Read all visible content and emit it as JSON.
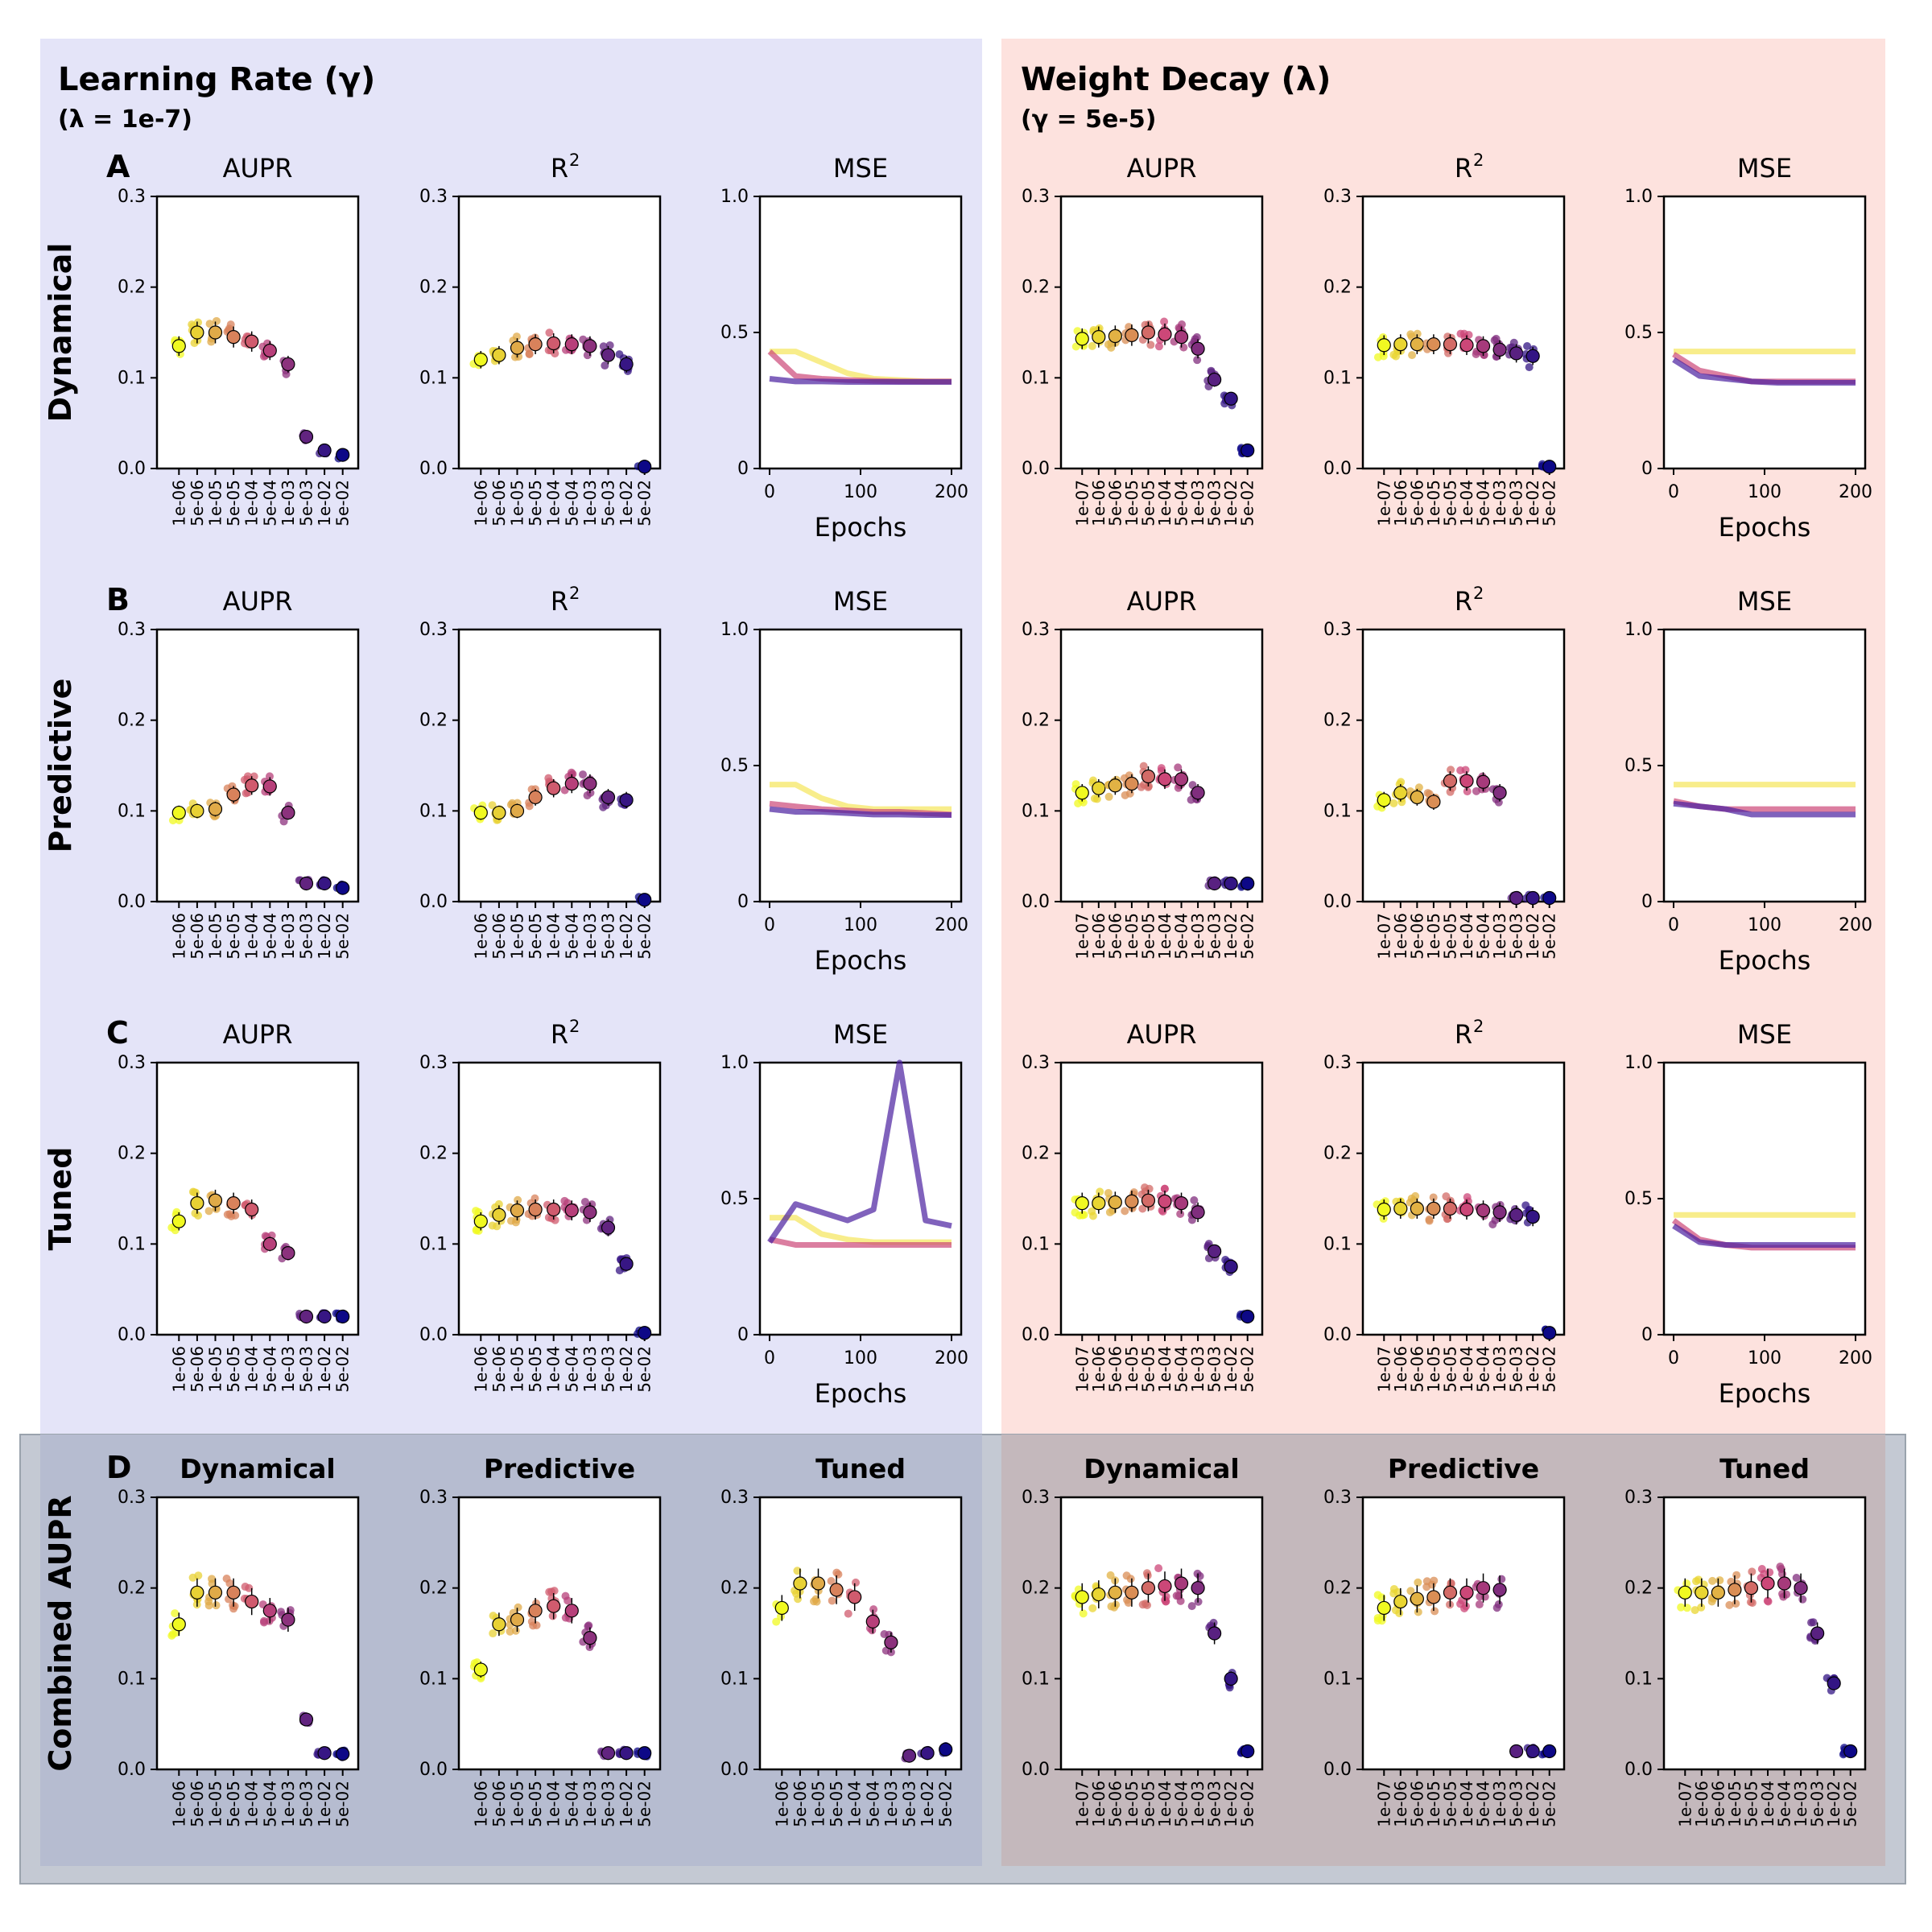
{
  "colors": {
    "bg_learning_rate": "#e4e4f8",
    "bg_weight_decay": "#fde2de",
    "bg_combined": "#c4c9d3",
    "bg_combined_lr": "#b6bcd0",
    "bg_combined_wd": "#c4b8bc",
    "plasma_low": "#0d0887",
    "plasma_mid": "#cc4778",
    "plasma_high": "#f0f921"
  },
  "sections": {
    "lr_title": "Learning Rate (γ)",
    "lr_subtitle": "(λ = 1e-7)",
    "wd_title": "Weight Decay (λ)",
    "wd_subtitle": "(γ = 5e-5)"
  },
  "rows": [
    {
      "letter": "A",
      "label": "Dynamical"
    },
    {
      "letter": "B",
      "label": "Predictive"
    },
    {
      "letter": "C",
      "label": "Tuned"
    },
    {
      "letter": "D",
      "label": "Combined AUPR"
    }
  ],
  "titles": {
    "aupr": "AUPR",
    "r2": "R",
    "r2_sup": "2",
    "mse": "MSE",
    "dynamical": "Dynamical",
    "predictive": "Predictive",
    "tuned": "Tuned"
  },
  "axis": {
    "epochs_label": "Epochs",
    "lr_ticks": [
      "1e-06",
      "5e-06",
      "1e-05",
      "5e-05",
      "1e-04",
      "5e-04",
      "1e-03",
      "5e-03",
      "1e-02",
      "5e-02"
    ],
    "wd_ticks": [
      "1e-07",
      "1e-06",
      "5e-06",
      "1e-05",
      "5e-05",
      "1e-04",
      "5e-04",
      "1e-03",
      "5e-03",
      "1e-02",
      "5e-02"
    ],
    "metric_yticks": [
      "0.0",
      "0.1",
      "0.2",
      "0.3"
    ],
    "mse_yticks": [
      "0",
      "0.5",
      "1.0"
    ],
    "epoch_ticks": [
      "0",
      "100",
      "200"
    ]
  },
  "chart_data": [
    {
      "id": "A-lr-aupr",
      "type": "scatter",
      "title": "AUPR",
      "x": [
        "1e-06",
        "5e-06",
        "1e-05",
        "5e-05",
        "1e-04",
        "5e-04",
        "1e-03",
        "5e-03",
        "1e-02",
        "5e-02"
      ],
      "means": [
        0.135,
        0.15,
        0.15,
        0.145,
        0.14,
        0.13,
        0.115,
        0.035,
        0.02,
        0.015
      ],
      "ylim": [
        0,
        0.3
      ]
    },
    {
      "id": "A-lr-r2",
      "type": "scatter",
      "title": "R2",
      "x": [
        "1e-06",
        "5e-06",
        "1e-05",
        "5e-05",
        "1e-04",
        "5e-04",
        "1e-03",
        "5e-03",
        "1e-02",
        "5e-02"
      ],
      "means": [
        0.12,
        0.125,
        0.133,
        0.137,
        0.138,
        0.137,
        0.135,
        0.125,
        0.115,
        0.002
      ],
      "ylim": [
        0,
        0.3
      ]
    },
    {
      "id": "A-lr-mse",
      "type": "line",
      "title": "MSE",
      "xlabel": "Epochs",
      "curves": [
        [
          0.43,
          0.43,
          0.39,
          0.35,
          0.33,
          0.325,
          0.32,
          0.32
        ],
        [
          0.43,
          0.34,
          0.33,
          0.325,
          0.322,
          0.32,
          0.32,
          0.32
        ],
        [
          0.33,
          0.32,
          0.32,
          0.318,
          0.318,
          0.318,
          0.318,
          0.318
        ]
      ],
      "ylim": [
        0,
        1.0
      ]
    },
    {
      "id": "A-wd-aupr",
      "type": "scatter",
      "title": "AUPR",
      "x": [
        "1e-07",
        "1e-06",
        "5e-06",
        "1e-05",
        "5e-05",
        "1e-04",
        "5e-04",
        "1e-03",
        "5e-03",
        "1e-02",
        "5e-02"
      ],
      "means": [
        0.143,
        0.145,
        0.146,
        0.147,
        0.15,
        0.148,
        0.145,
        0.132,
        0.098,
        0.077,
        0.02
      ],
      "ylim": [
        0,
        0.3
      ]
    },
    {
      "id": "A-wd-r2",
      "type": "scatter",
      "title": "R2",
      "x": [
        "1e-07",
        "1e-06",
        "5e-06",
        "1e-05",
        "5e-05",
        "1e-04",
        "5e-04",
        "1e-03",
        "5e-03",
        "1e-02",
        "5e-02"
      ],
      "means": [
        0.136,
        0.137,
        0.137,
        0.137,
        0.137,
        0.136,
        0.135,
        0.131,
        0.127,
        0.124,
        0.002
      ],
      "ylim": [
        0,
        0.3
      ]
    },
    {
      "id": "A-wd-mse",
      "type": "line",
      "title": "MSE",
      "xlabel": "Epochs",
      "curves": [
        [
          0.43,
          0.43,
          0.43,
          0.43,
          0.43,
          0.43,
          0.43,
          0.43
        ],
        [
          0.42,
          0.36,
          0.34,
          0.32,
          0.32,
          0.32,
          0.32,
          0.32
        ],
        [
          0.4,
          0.34,
          0.33,
          0.32,
          0.315,
          0.315,
          0.315,
          0.315
        ]
      ],
      "ylim": [
        0,
        1.0
      ]
    },
    {
      "id": "B-lr-aupr",
      "type": "scatter",
      "title": "AUPR",
      "x": [
        "1e-06",
        "5e-06",
        "1e-05",
        "5e-05",
        "1e-04",
        "5e-04",
        "1e-03",
        "5e-03",
        "1e-02",
        "5e-02"
      ],
      "means": [
        0.098,
        0.1,
        0.102,
        0.118,
        0.128,
        0.127,
        0.098,
        0.02,
        0.02,
        0.015
      ],
      "ylim": [
        0,
        0.3
      ]
    },
    {
      "id": "B-lr-r2",
      "type": "scatter",
      "title": "R2",
      "x": [
        "1e-06",
        "5e-06",
        "1e-05",
        "5e-05",
        "1e-04",
        "5e-04",
        "1e-03",
        "5e-03",
        "1e-02",
        "5e-02"
      ],
      "means": [
        0.098,
        0.098,
        0.1,
        0.115,
        0.125,
        0.13,
        0.13,
        0.115,
        0.112,
        0.002
      ],
      "ylim": [
        0,
        0.3
      ]
    },
    {
      "id": "B-lr-mse",
      "type": "line",
      "title": "MSE",
      "xlabel": "Epochs",
      "curves": [
        [
          0.43,
          0.43,
          0.38,
          0.35,
          0.34,
          0.34,
          0.34,
          0.34
        ],
        [
          0.36,
          0.35,
          0.34,
          0.335,
          0.33,
          0.33,
          0.325,
          0.32
        ],
        [
          0.34,
          0.33,
          0.33,
          0.325,
          0.32,
          0.32,
          0.318,
          0.318
        ]
      ],
      "ylim": [
        0,
        1.0
      ]
    },
    {
      "id": "B-wd-aupr",
      "type": "scatter",
      "title": "AUPR",
      "x": [
        "1e-07",
        "1e-06",
        "5e-06",
        "1e-05",
        "5e-05",
        "1e-04",
        "5e-04",
        "1e-03",
        "5e-03",
        "1e-02",
        "5e-02"
      ],
      "means": [
        0.12,
        0.125,
        0.128,
        0.13,
        0.138,
        0.135,
        0.135,
        0.12,
        0.02,
        0.02,
        0.02
      ],
      "ylim": [
        0,
        0.3
      ]
    },
    {
      "id": "B-wd-r2",
      "type": "scatter",
      "title": "R2",
      "x": [
        "1e-07",
        "1e-06",
        "5e-06",
        "1e-05",
        "5e-05",
        "1e-04",
        "5e-04",
        "1e-03",
        "5e-03",
        "1e-02",
        "5e-02"
      ],
      "means": [
        0.112,
        0.12,
        0.115,
        0.11,
        0.133,
        0.133,
        0.132,
        0.12,
        0.004,
        0.004,
        0.004
      ],
      "ylim": [
        0,
        0.3
      ]
    },
    {
      "id": "B-wd-mse",
      "type": "line",
      "title": "MSE",
      "xlabel": "Epochs",
      "curves": [
        [
          0.43,
          0.43,
          0.43,
          0.43,
          0.43,
          0.43,
          0.43,
          0.43
        ],
        [
          0.37,
          0.35,
          0.34,
          0.34,
          0.34,
          0.34,
          0.34,
          0.34
        ],
        [
          0.36,
          0.35,
          0.34,
          0.32,
          0.32,
          0.32,
          0.32,
          0.32
        ]
      ],
      "ylim": [
        0,
        1.0
      ]
    },
    {
      "id": "C-lr-aupr",
      "type": "scatter",
      "title": "AUPR",
      "x": [
        "1e-06",
        "5e-06",
        "1e-05",
        "5e-05",
        "1e-04",
        "5e-04",
        "1e-03",
        "5e-03",
        "1e-02",
        "5e-02"
      ],
      "means": [
        0.125,
        0.145,
        0.148,
        0.145,
        0.138,
        0.1,
        0.09,
        0.02,
        0.02,
        0.02
      ],
      "ylim": [
        0,
        0.3
      ]
    },
    {
      "id": "C-lr-r2",
      "type": "scatter",
      "title": "R2",
      "x": [
        "1e-06",
        "5e-06",
        "1e-05",
        "5e-05",
        "1e-04",
        "5e-04",
        "1e-03",
        "5e-03",
        "1e-02",
        "5e-02"
      ],
      "means": [
        0.125,
        0.132,
        0.137,
        0.138,
        0.138,
        0.137,
        0.135,
        0.118,
        0.078,
        0.002
      ],
      "ylim": [
        0,
        0.3
      ]
    },
    {
      "id": "C-lr-mse",
      "type": "line",
      "title": "MSE",
      "xlabel": "Epochs",
      "curves": [
        [
          0.43,
          0.43,
          0.37,
          0.35,
          0.34,
          0.34,
          0.34,
          0.34
        ],
        [
          0.35,
          0.33,
          0.33,
          0.33,
          0.33,
          0.33,
          0.33,
          0.33
        ],
        [
          0.34,
          0.48,
          0.45,
          0.42,
          0.46,
          1.0,
          0.42,
          0.4
        ]
      ],
      "ylim": [
        0,
        1.0
      ]
    },
    {
      "id": "C-wd-aupr",
      "type": "scatter",
      "title": "AUPR",
      "x": [
        "1e-07",
        "1e-06",
        "5e-06",
        "1e-05",
        "5e-05",
        "1e-04",
        "5e-04",
        "1e-03",
        "5e-03",
        "1e-02",
        "5e-02"
      ],
      "means": [
        0.145,
        0.145,
        0.146,
        0.147,
        0.148,
        0.147,
        0.145,
        0.135,
        0.092,
        0.075,
        0.02
      ],
      "ylim": [
        0,
        0.3
      ]
    },
    {
      "id": "C-wd-r2",
      "type": "scatter",
      "title": "R2",
      "x": [
        "1e-07",
        "1e-06",
        "5e-06",
        "1e-05",
        "5e-05",
        "1e-04",
        "5e-04",
        "1e-03",
        "5e-03",
        "1e-02",
        "5e-02"
      ],
      "means": [
        0.138,
        0.139,
        0.139,
        0.139,
        0.139,
        0.138,
        0.137,
        0.135,
        0.132,
        0.13,
        0.002
      ],
      "ylim": [
        0,
        0.3
      ]
    },
    {
      "id": "C-wd-mse",
      "type": "line",
      "title": "MSE",
      "xlabel": "Epochs",
      "curves": [
        [
          0.44,
          0.44,
          0.44,
          0.44,
          0.44,
          0.44,
          0.44,
          0.44
        ],
        [
          0.42,
          0.35,
          0.33,
          0.32,
          0.32,
          0.32,
          0.32,
          0.32
        ],
        [
          0.4,
          0.34,
          0.33,
          0.33,
          0.33,
          0.33,
          0.33,
          0.33
        ]
      ],
      "ylim": [
        0,
        1.0
      ]
    },
    {
      "id": "D-lr-dyn",
      "type": "scatter",
      "title": "Dynamical",
      "x": [
        "1e-06",
        "5e-06",
        "1e-05",
        "5e-05",
        "1e-04",
        "5e-04",
        "1e-03",
        "5e-03",
        "1e-02",
        "5e-02"
      ],
      "means": [
        0.16,
        0.195,
        0.195,
        0.195,
        0.185,
        0.175,
        0.165,
        0.055,
        0.018,
        0.017
      ],
      "ylim": [
        0,
        0.3
      ]
    },
    {
      "id": "D-lr-pred",
      "type": "scatter",
      "title": "Predictive",
      "x": [
        "1e-06",
        "5e-06",
        "1e-05",
        "5e-05",
        "1e-04",
        "5e-04",
        "1e-03",
        "5e-03",
        "1e-02",
        "5e-02"
      ],
      "means": [
        0.11,
        0.16,
        0.165,
        0.175,
        0.18,
        0.175,
        0.145,
        0.018,
        0.018,
        0.018
      ],
      "ylim": [
        0,
        0.3
      ]
    },
    {
      "id": "D-lr-tuned",
      "type": "scatter",
      "title": "Tuned",
      "x": [
        "1e-06",
        "5e-06",
        "1e-05",
        "5e-05",
        "1e-04",
        "5e-04",
        "1e-03",
        "5e-03",
        "1e-02",
        "5e-02"
      ],
      "means": [
        0.178,
        0.205,
        0.205,
        0.198,
        0.19,
        0.163,
        0.14,
        0.015,
        0.018,
        0.022
      ],
      "ylim": [
        0,
        0.3
      ]
    },
    {
      "id": "D-wd-dyn",
      "type": "scatter",
      "title": "Dynamical",
      "x": [
        "1e-07",
        "1e-06",
        "5e-06",
        "1e-05",
        "5e-05",
        "1e-04",
        "5e-04",
        "1e-03",
        "5e-03",
        "1e-02",
        "5e-02"
      ],
      "means": [
        0.19,
        0.193,
        0.195,
        0.195,
        0.2,
        0.202,
        0.205,
        0.2,
        0.15,
        0.1,
        0.02
      ],
      "ylim": [
        0,
        0.3
      ]
    },
    {
      "id": "D-wd-pred",
      "type": "scatter",
      "title": "Predictive",
      "x": [
        "1e-07",
        "1e-06",
        "5e-06",
        "1e-05",
        "5e-05",
        "1e-04",
        "5e-04",
        "1e-03",
        "5e-03",
        "1e-02",
        "5e-02"
      ],
      "means": [
        0.178,
        0.185,
        0.188,
        0.19,
        0.195,
        0.195,
        0.2,
        0.198,
        0.02,
        0.02,
        0.02
      ],
      "ylim": [
        0,
        0.3
      ]
    },
    {
      "id": "D-wd-tuned",
      "type": "scatter",
      "title": "Tuned",
      "x": [
        "1e-07",
        "1e-06",
        "5e-06",
        "1e-05",
        "5e-05",
        "1e-04",
        "5e-04",
        "1e-03",
        "5e-03",
        "1e-02",
        "5e-02"
      ],
      "means": [
        0.195,
        0.195,
        0.195,
        0.198,
        0.2,
        0.205,
        0.205,
        0.2,
        0.15,
        0.095,
        0.02
      ],
      "ylim": [
        0,
        0.3
      ]
    }
  ]
}
